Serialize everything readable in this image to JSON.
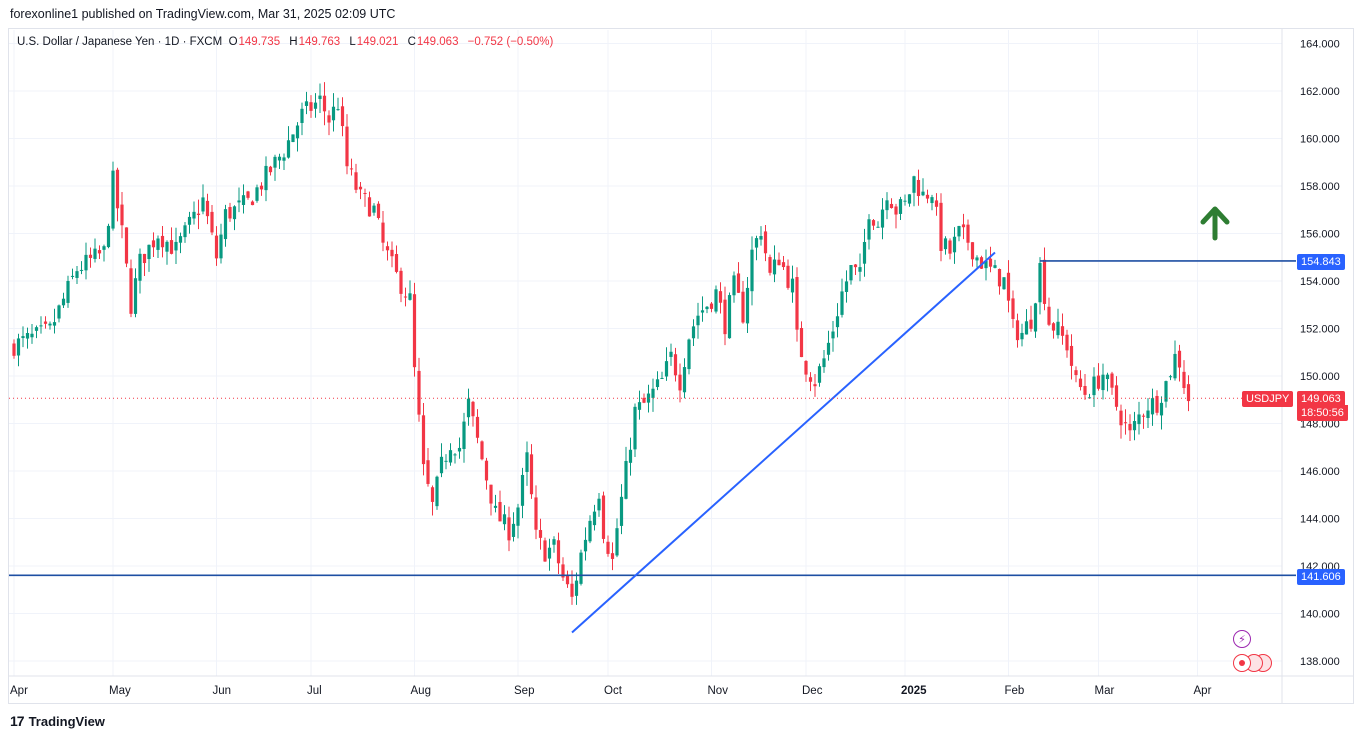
{
  "header": {
    "published_by": "forexonline1 published on TradingView.com, Mar 31, 2025 02:09 UTC"
  },
  "legend": {
    "symbol": "U.S. Dollar / Japanese Yen · 1D · FXCM",
    "open_label": "O",
    "open": "149.735",
    "high_label": "H",
    "high": "149.763",
    "low_label": "L",
    "low": "149.021",
    "close_label": "C",
    "close": "149.063",
    "change": "−0.752 (−0.50%)"
  },
  "labels": {
    "resistance": "154.843",
    "support": "141.606",
    "symbol_tag": "USDJPY",
    "last_price": "149.063",
    "countdown": "18:50:56"
  },
  "footer": {
    "brand": "TradingView",
    "logo_text": "17"
  },
  "colors": {
    "up": "#089981",
    "down": "#f23645",
    "line": "#2962ff",
    "hline": "#1e4fa3",
    "arrow": "#2e7d32",
    "grid": "#f0f3fa"
  },
  "icons": {
    "flash": "flash-icon",
    "replay": "replay-icon",
    "arrow": "arrow-up-icon"
  },
  "chart_data": {
    "type": "candlestick",
    "symbol": "USDJPY",
    "timeframe": "1D",
    "y_ticks": [
      "138.000",
      "140.000",
      "142.000",
      "144.000",
      "146.000",
      "148.000",
      "150.000",
      "152.000",
      "154.000",
      "156.000",
      "158.000",
      "160.000",
      "162.000",
      "164.000"
    ],
    "ylim": [
      137,
      165
    ],
    "x_ticks": [
      {
        "label": "Apr",
        "idx": 0
      },
      {
        "label": "May",
        "idx": 22
      },
      {
        "label": "Jun",
        "idx": 45
      },
      {
        "label": "Jul",
        "idx": 66
      },
      {
        "label": "Aug",
        "idx": 89
      },
      {
        "label": "Sep",
        "idx": 112
      },
      {
        "label": "Oct",
        "idx": 132
      },
      {
        "label": "Nov",
        "idx": 155
      },
      {
        "label": "Dec",
        "idx": 176
      },
      {
        "label": "2025",
        "idx": 198
      },
      {
        "label": "Feb",
        "idx": 221
      },
      {
        "label": "Mar",
        "idx": 241
      },
      {
        "label": "Apr",
        "idx": 263
      }
    ],
    "horizontal_lines": [
      {
        "name": "support",
        "value": 141.606,
        "from_idx": -1
      },
      {
        "name": "resistance",
        "value": 154.843,
        "from_idx": 228
      }
    ],
    "trendline": {
      "from": {
        "idx": 124,
        "value": 139.2
      },
      "to": {
        "idx": 218,
        "value": 155.2
      }
    },
    "current_price": 149.063,
    "keyframes": [
      [
        0,
        151.3
      ],
      [
        8,
        151.9
      ],
      [
        14,
        154.5
      ],
      [
        20,
        155.2
      ],
      [
        22,
        158.2
      ],
      [
        24,
        156.0
      ],
      [
        26,
        153.0
      ],
      [
        28,
        154.8
      ],
      [
        32,
        156.0
      ],
      [
        36,
        155.3
      ],
      [
        42,
        157.4
      ],
      [
        45,
        155.0
      ],
      [
        47,
        156.8
      ],
      [
        52,
        157.3
      ],
      [
        60,
        159.5
      ],
      [
        64,
        161.0
      ],
      [
        68,
        161.6
      ],
      [
        70,
        160.8
      ],
      [
        72,
        161.5
      ],
      [
        74,
        158.8
      ],
      [
        77,
        157.5
      ],
      [
        80,
        157.0
      ],
      [
        82,
        155.5
      ],
      [
        85,
        154.2
      ],
      [
        88,
        153.2
      ],
      [
        89,
        150.2
      ],
      [
        91,
        146.0
      ],
      [
        93,
        144.5
      ],
      [
        95,
        146.2
      ],
      [
        97,
        147.2
      ],
      [
        99,
        147.0
      ],
      [
        101,
        148.8
      ],
      [
        104,
        146.5
      ],
      [
        107,
        144.2
      ],
      [
        110,
        143.5
      ],
      [
        112,
        144.5
      ],
      [
        114,
        146.5
      ],
      [
        116,
        143.2
      ],
      [
        118,
        142.6
      ],
      [
        120,
        142.8
      ],
      [
        122,
        141.5
      ],
      [
        124,
        140.6
      ],
      [
        126,
        142.5
      ],
      [
        128,
        144.0
      ],
      [
        130,
        145.2
      ],
      [
        131,
        143.5
      ],
      [
        133,
        142.2
      ],
      [
        134,
        143.6
      ],
      [
        136,
        146.0
      ],
      [
        138,
        148.5
      ],
      [
        140,
        148.8
      ],
      [
        142,
        149.3
      ],
      [
        144,
        149.8
      ],
      [
        146,
        150.8
      ],
      [
        148,
        149.8
      ],
      [
        150,
        151.7
      ],
      [
        152,
        152.6
      ],
      [
        154,
        153.0
      ],
      [
        156,
        153.5
      ],
      [
        158,
        152.2
      ],
      [
        160,
        153.8
      ],
      [
        162,
        152.6
      ],
      [
        164,
        155.2
      ],
      [
        166,
        156.2
      ],
      [
        168,
        154.2
      ],
      [
        170,
        155.0
      ],
      [
        172,
        154.1
      ],
      [
        173,
        153.8
      ],
      [
        174,
        151.6
      ],
      [
        176,
        150.4
      ],
      [
        178,
        149.8
      ],
      [
        180,
        150.7
      ],
      [
        182,
        152.0
      ],
      [
        184,
        153.5
      ],
      [
        186,
        154.5
      ],
      [
        188,
        154.2
      ],
      [
        190,
        157.0
      ],
      [
        192,
        156.4
      ],
      [
        194,
        157.8
      ],
      [
        196,
        157.0
      ],
      [
        198,
        157.2
      ],
      [
        200,
        158.3
      ],
      [
        202,
        157.6
      ],
      [
        204,
        157.8
      ],
      [
        206,
        155.6
      ],
      [
        208,
        155.2
      ],
      [
        210,
        156.0
      ],
      [
        212,
        155.7
      ],
      [
        214,
        155.0
      ],
      [
        216,
        154.6
      ],
      [
        218,
        154.3
      ],
      [
        220,
        154.0
      ],
      [
        222,
        152.0
      ],
      [
        224,
        151.8
      ],
      [
        226,
        152.4
      ],
      [
        228,
        154.6
      ],
      [
        230,
        152.3
      ],
      [
        232,
        151.9
      ],
      [
        234,
        151.3
      ],
      [
        236,
        149.7
      ],
      [
        238,
        149.3
      ],
      [
        240,
        149.6
      ],
      [
        242,
        150.1
      ],
      [
        244,
        149.2
      ],
      [
        246,
        148.3
      ],
      [
        248,
        147.5
      ],
      [
        250,
        148.3
      ],
      [
        252,
        148.8
      ],
      [
        254,
        148.9
      ],
      [
        256,
        149.7
      ],
      [
        258,
        150.8
      ],
      [
        259,
        150.6
      ],
      [
        260,
        149.7
      ],
      [
        261,
        149.06
      ]
    ]
  }
}
